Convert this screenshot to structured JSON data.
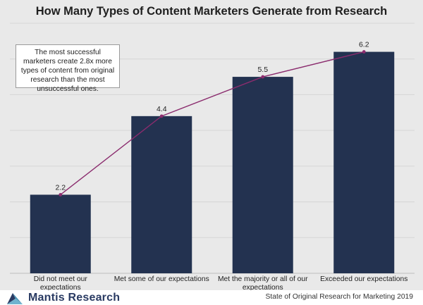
{
  "chart_data": {
    "type": "bar",
    "title": "How Many Types of Content Marketers Generate from Research",
    "categories": [
      "Did not meet our expectations",
      "Met some of our expectations",
      "Met the majority or all of our expectations",
      "Exceeded our expectations"
    ],
    "values": [
      2.2,
      4.4,
      5.5,
      6.2
    ],
    "data_labels": [
      "2.2",
      "4.4",
      "5.5",
      "6.2"
    ],
    "overlay_line": true,
    "ylim": [
      0,
      7
    ],
    "grid": true,
    "annotation": "The most successful marketers create 2.8x more types of content from original research than the most unsuccessful ones.",
    "bar_color": "#233250",
    "line_color": "#8b2c6e",
    "background_color": "#e9e9e9"
  },
  "footer": {
    "logo_text": "Mantis Research",
    "logo_icon": "mantis-logo-icon",
    "source": "State of Original Research for Marketing 2019",
    "logo_color": "#2a3b63"
  }
}
